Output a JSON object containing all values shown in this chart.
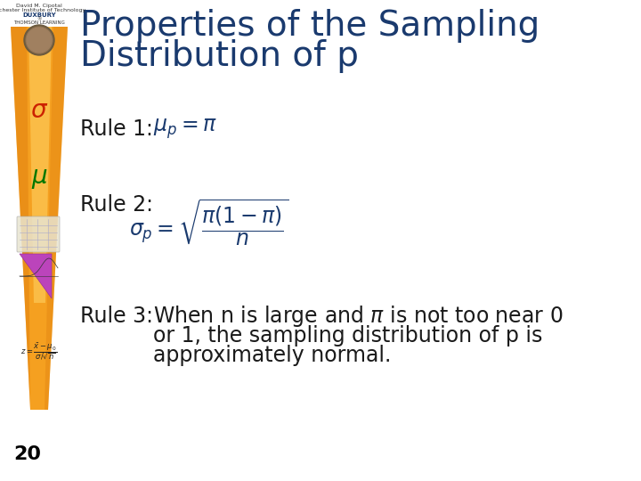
{
  "title_line1": "Properties of the Sampling",
  "title_line2": "Distribution of p",
  "title_color": "#1a3a6e",
  "title_fontsize": 28,
  "background_color": "#ffffff",
  "rule1_label": "Rule 1:",
  "rule1_formula": "$\\mu_p = \\pi$",
  "rule2_label": "Rule 2:",
  "rule2_formula_line1": "$\\sigma_p = \\sqrt{\\dfrac{\\pi(1-\\pi)}{n}}$",
  "rule3_label": "Rule 3:",
  "rule3_text1": "When n is large and $\\pi$ is not too near 0",
  "rule3_text2": "or 1, the sampling distribution of p is",
  "rule3_text3": "approximately normal.",
  "rule_label_color": "#1a1a1a",
  "rule_formula_color": "#1a3a6e",
  "rule3_text_color": "#1a1a1a",
  "label_fontsize": 17,
  "formula1_fontsize": 17,
  "formula2_fontsize": 17,
  "rule3_fontsize": 17,
  "page_number": "20",
  "page_number_color": "#000000",
  "page_number_fontsize": 16,
  "sigma_color": "#cc2200",
  "mu_color": "#007700",
  "tie_main": "#F5A020",
  "tie_highlight": "#FFD060",
  "tie_shadow": "#E08010",
  "header_line1": "David M. Cipotal",
  "header_line2": "Rochester Institute of Technology",
  "header_line3": "DUXBURY",
  "header_line4": "®",
  "header_line5": "THOMSON LEARNING"
}
